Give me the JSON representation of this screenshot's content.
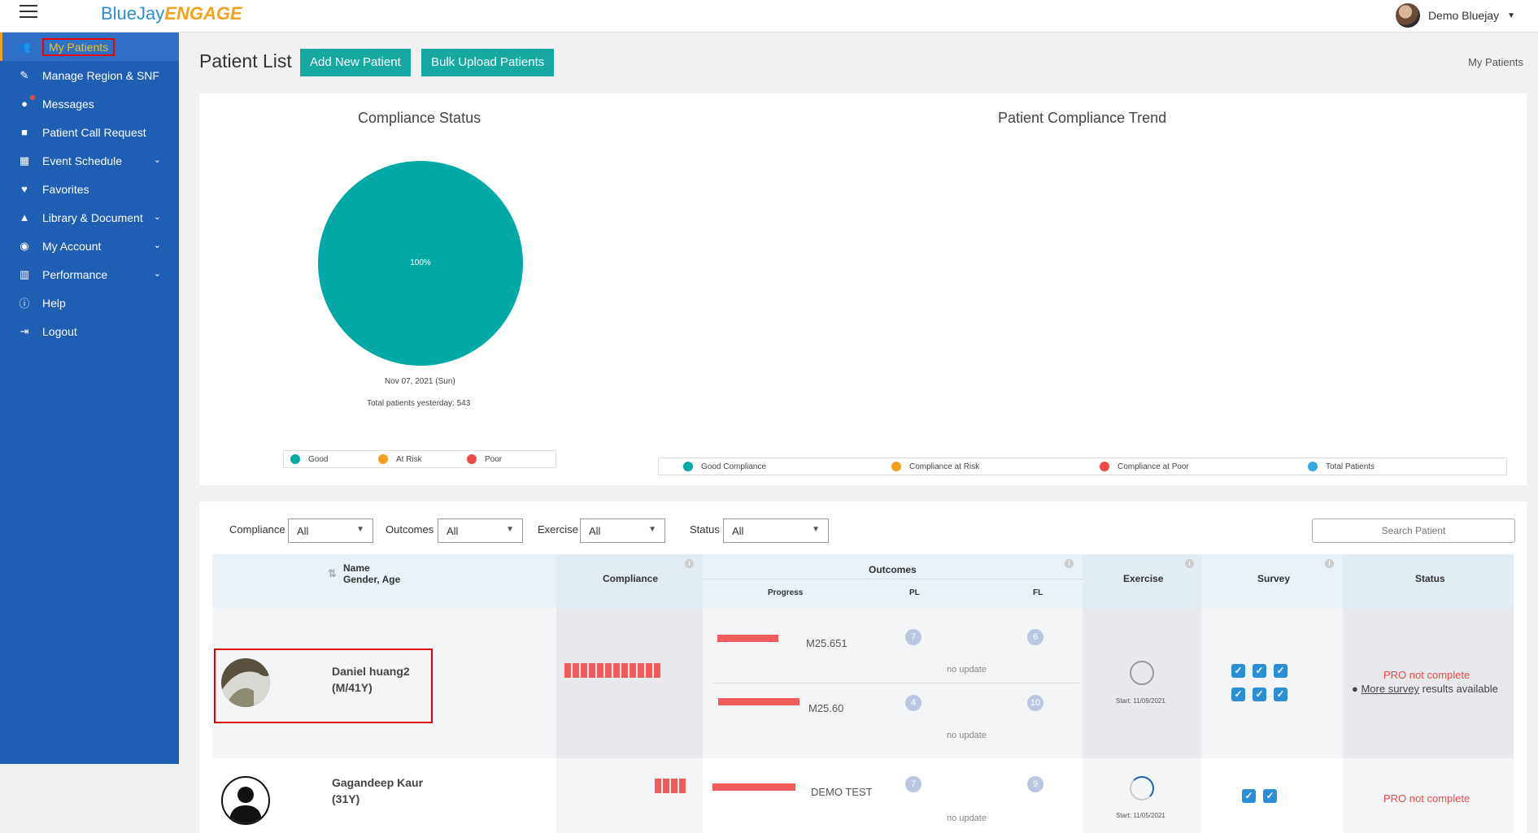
{
  "app": {
    "logo_part1": "BlueJay",
    "logo_part2": "ENGAGE"
  },
  "user": {
    "name": "Demo Bluejay"
  },
  "sidebar": {
    "items": [
      {
        "label": "My Patients",
        "icon": "users-icon",
        "active": true,
        "chevron": false
      },
      {
        "label": "Manage Region & SNF",
        "icon": "edit-icon",
        "chevron": false
      },
      {
        "label": "Messages",
        "icon": "chat-icon",
        "chevron": false
      },
      {
        "label": "Patient Call Request",
        "icon": "video-icon",
        "chevron": false
      },
      {
        "label": "Event Schedule",
        "icon": "calendar-icon",
        "chevron": true
      },
      {
        "label": "Favorites",
        "icon": "heart-icon",
        "chevron": false
      },
      {
        "label": "Library & Document",
        "icon": "library-icon",
        "chevron": true
      },
      {
        "label": "My Account",
        "icon": "account-icon",
        "chevron": true
      },
      {
        "label": "Performance",
        "icon": "bar-chart-icon",
        "chevron": true
      },
      {
        "label": "Help",
        "icon": "info-icon",
        "chevron": false
      },
      {
        "label": "Logout",
        "icon": "logout-icon",
        "chevron": false
      }
    ]
  },
  "header": {
    "title": "Patient List",
    "add_button": "Add New Patient",
    "bulk_button": "Bulk Upload Patients",
    "breadcrumb": "My Patients"
  },
  "compliance_status": {
    "title": "Compliance Status",
    "date": "Nov 07, 2021 (Sun)",
    "total": "Total patients yesterday: 543",
    "legend": [
      "Good",
      "At Risk",
      "Poor"
    ],
    "colors": {
      "good": "#00a9a5",
      "at_risk": "#f5a01a",
      "poor": "#f04a4a"
    }
  },
  "chart_data": [
    {
      "type": "pie",
      "categories": [
        "Good",
        "At Risk",
        "Poor"
      ],
      "values": [
        100,
        0,
        0
      ],
      "slice_label": "100%"
    },
    {
      "type": "line",
      "title": "Patient Compliance Trend",
      "series": [
        {
          "name": "Good Compliance",
          "color": "#00a9a5",
          "values": []
        },
        {
          "name": "Compliance at Risk",
          "color": "#f5a01a",
          "values": []
        },
        {
          "name": "Compliance at Poor",
          "color": "#f04a4a",
          "values": []
        },
        {
          "name": "Total Patients",
          "color": "#3aa8e0",
          "values": []
        }
      ]
    }
  ],
  "filters": {
    "compliance_label": "Compliance",
    "outcomes_label": "Outcomes",
    "exercise_label": "Exercise",
    "status_label": "Status",
    "compliance_value": "All",
    "outcomes_value": "All",
    "exercise_value": "All",
    "status_value": "All",
    "search_placeholder": "Search Patient"
  },
  "table": {
    "headers": {
      "name": "Name",
      "gender_age": "Gender, Age",
      "compliance": "Compliance",
      "outcomes": "Outcomes",
      "progress": "Progress",
      "pl": "PL",
      "fl": "FL",
      "exercise": "Exercise",
      "survey": "Survey",
      "status": "Status"
    },
    "rows": [
      {
        "name": "Daniel huang2",
        "gender_age": "(M/41Y)",
        "compliance_blocks": 12,
        "outcomes": [
          {
            "code": "M25.651",
            "progress": 0.74,
            "pl": "7",
            "fl": "6",
            "update": "no update"
          },
          {
            "code": "M25.60",
            "progress": 0.98,
            "pl": "4",
            "fl": "10",
            "update": "no update"
          }
        ],
        "exercise_start": "Start: 11/09/2021",
        "exercise_progress": 0,
        "survey_checks": 6,
        "status": "PRO not complete",
        "more_prefix": "More survey",
        "more_suffix": " results available"
      },
      {
        "name": "Gagandeep Kaur",
        "gender_age": "(31Y)",
        "compliance_blocks": 4,
        "outcomes": [
          {
            "code": "DEMO TEST",
            "progress": 1.0,
            "pl": "7",
            "fl": "9",
            "update": "no update"
          }
        ],
        "exercise_start": "Start: 11/05/2021",
        "exercise_progress": 0.25,
        "survey_checks": 2,
        "status": "PRO not complete"
      }
    ]
  }
}
